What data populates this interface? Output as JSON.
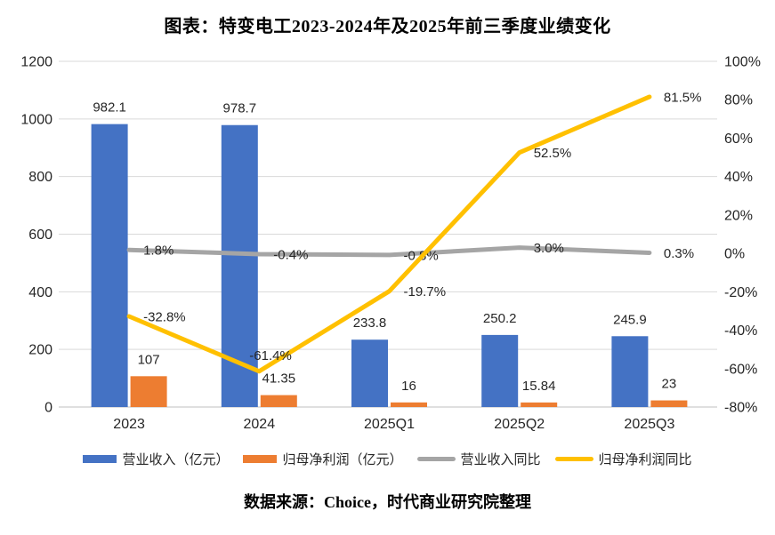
{
  "title": "图表：特变电工2023-2024年及2025年前三季度业绩变化",
  "source": "数据来源：Choice，时代商业研究院整理",
  "chart_data": {
    "type": "bar+line combo chart with dual y-axes",
    "categories": [
      "2023",
      "2024",
      "2025Q1",
      "2025Q2",
      "2025Q3"
    ],
    "series": [
      {
        "key": "revenue-bar",
        "name": "营业收入（亿元）",
        "chart": "bar",
        "axis": "left",
        "color": "#4472C4",
        "values": [
          982.1,
          978.7,
          233.8,
          250.2,
          245.9
        ],
        "labels": [
          "982.1",
          "978.7",
          "233.8",
          "250.2",
          "245.9"
        ]
      },
      {
        "key": "net-profit-bar",
        "name": "归母净利润（亿元）",
        "chart": "bar",
        "axis": "left",
        "color": "#ED7D31",
        "values": [
          107,
          41.35,
          16,
          15.84,
          23
        ],
        "labels": [
          "107",
          "41.35",
          "16",
          "15.84",
          "23"
        ]
      },
      {
        "key": "revenue-yoy-line",
        "name": "营业收入同比",
        "chart": "line",
        "axis": "right",
        "color": "#A5A5A5",
        "values": [
          1.8,
          -0.4,
          -0.8,
          3.0,
          0.3
        ],
        "labels": [
          "1.8%",
          "-0.4%",
          "-0.8%",
          "3.0%",
          "0.3%"
        ]
      },
      {
        "key": "net-profit-yoy-line",
        "name": "归母净利润同比",
        "chart": "line",
        "axis": "right",
        "color": "#FFC000",
        "values": [
          -32.8,
          -61.4,
          -19.7,
          52.5,
          81.5
        ],
        "labels": [
          "-32.8%",
          "-61.4%",
          "-19.7%",
          "52.5%",
          "81.5%"
        ],
        "label_offset_overrides": {
          "1": [
            -11,
            -13
          ]
        }
      }
    ],
    "left_axis": {
      "min": 0,
      "max": 1200,
      "step": 200,
      "tick_labels": [
        "0",
        "200",
        "400",
        "600",
        "800",
        "1000",
        "1200"
      ]
    },
    "right_axis": {
      "min": -80,
      "max": 100,
      "step": 20,
      "tick_labels": [
        "-80%",
        "-60%",
        "-40%",
        "-20%",
        "0%",
        "20%",
        "40%",
        "60%",
        "80%",
        "100%"
      ]
    },
    "legend_position": "bottom",
    "grid": {
      "horizontal": true,
      "color": "#D9D9D9",
      "axis_line_color": "#BFBFBF"
    },
    "text_color": "#262626"
  }
}
